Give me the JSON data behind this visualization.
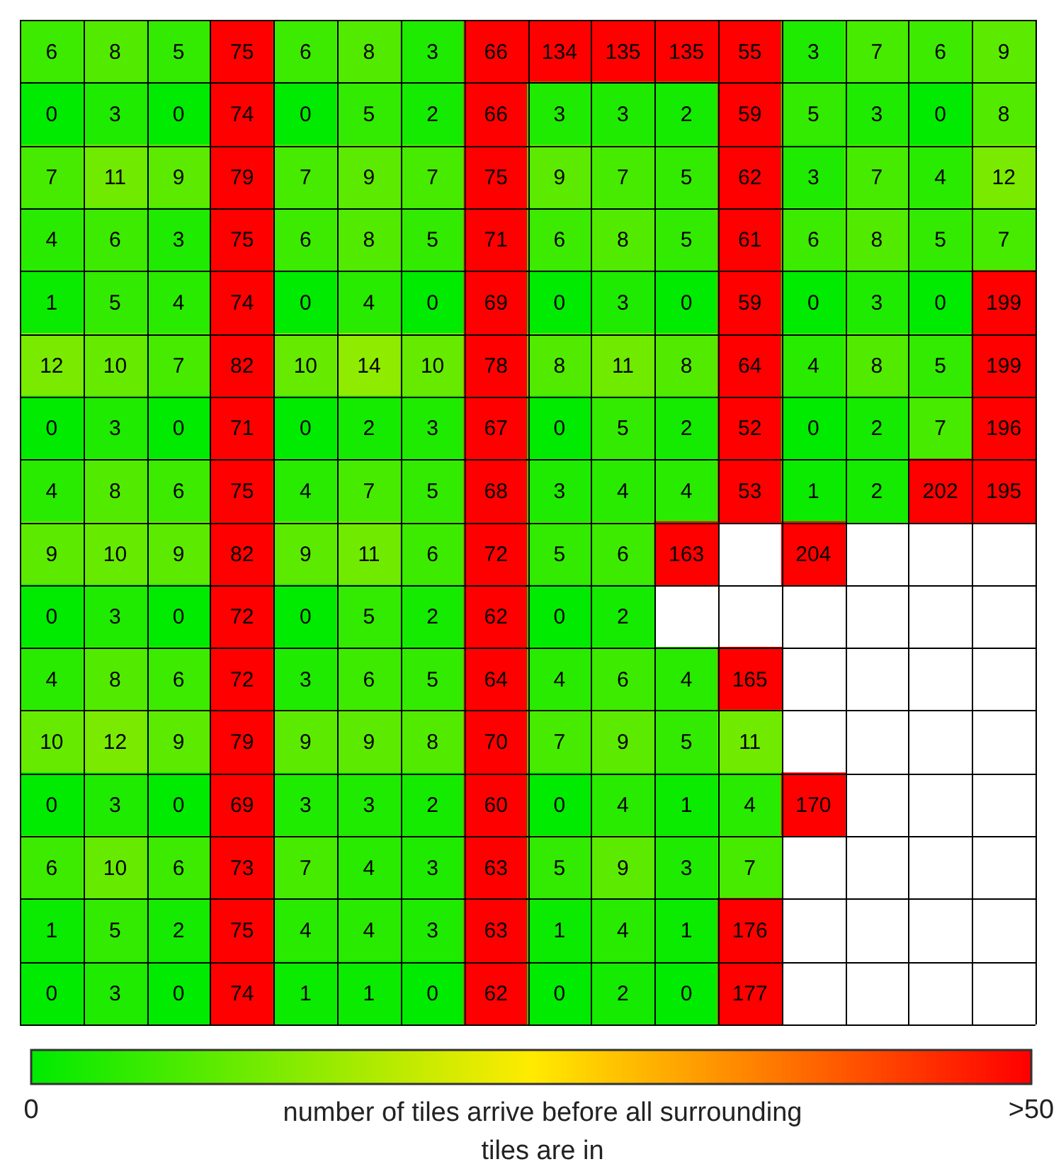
{
  "chart_data": {
    "type": "heatmap",
    "clabel": "number of tiles arrive before all surrounding tiles are in",
    "grid": true,
    "data_labels": true,
    "categories": [
      null,
      null,
      null,
      null,
      null,
      null,
      null,
      null,
      null,
      null,
      null,
      null,
      null,
      null,
      null,
      null
    ],
    "y_categories": [
      null,
      null,
      null,
      null,
      null,
      null,
      null,
      null,
      null,
      null,
      null,
      null,
      null,
      null,
      null,
      null
    ],
    "clim": [
      0,
      50
    ],
    "cticks": [
      0,
      {
        "value": 50,
        "label": ">50"
      }
    ],
    "cells": [
      [
        6,
        8,
        5,
        75,
        6,
        8,
        3,
        66,
        134,
        135,
        135,
        55,
        3,
        7,
        6,
        9
      ],
      [
        0,
        3,
        0,
        74,
        0,
        5,
        2,
        66,
        3,
        3,
        2,
        59,
        5,
        3,
        0,
        8
      ],
      [
        7,
        11,
        9,
        79,
        7,
        9,
        7,
        75,
        9,
        7,
        5,
        62,
        3,
        7,
        4,
        12
      ],
      [
        4,
        6,
        3,
        75,
        6,
        8,
        5,
        71,
        6,
        8,
        5,
        61,
        6,
        8,
        5,
        7
      ],
      [
        1,
        5,
        4,
        74,
        0,
        4,
        0,
        69,
        0,
        3,
        0,
        59,
        0,
        3,
        0,
        199
      ],
      [
        12,
        10,
        7,
        82,
        10,
        14,
        10,
        78,
        8,
        11,
        8,
        64,
        4,
        8,
        5,
        199
      ],
      [
        0,
        3,
        0,
        71,
        0,
        2,
        3,
        67,
        0,
        5,
        2,
        52,
        0,
        2,
        7,
        196
      ],
      [
        4,
        8,
        6,
        75,
        4,
        7,
        5,
        68,
        3,
        4,
        4,
        53,
        1,
        2,
        202,
        195
      ],
      [
        9,
        10,
        9,
        82,
        9,
        11,
        6,
        72,
        5,
        6,
        163,
        null,
        204,
        null,
        null,
        null
      ],
      [
        0,
        3,
        0,
        72,
        0,
        5,
        2,
        62,
        0,
        2,
        null,
        null,
        null,
        null,
        null,
        null
      ],
      [
        4,
        8,
        6,
        72,
        3,
        6,
        5,
        64,
        4,
        6,
        4,
        165,
        null,
        null,
        null,
        null
      ],
      [
        10,
        12,
        9,
        79,
        9,
        9,
        8,
        70,
        7,
        9,
        5,
        11,
        null,
        null,
        null,
        null
      ],
      [
        0,
        3,
        0,
        69,
        3,
        3,
        2,
        60,
        0,
        4,
        1,
        4,
        170,
        null,
        null,
        null
      ],
      [
        6,
        10,
        6,
        73,
        7,
        4,
        3,
        63,
        5,
        9,
        3,
        7,
        null,
        null,
        null,
        null
      ],
      [
        1,
        5,
        2,
        75,
        4,
        4,
        3,
        63,
        1,
        4,
        1,
        176,
        null,
        null,
        null,
        null
      ],
      [
        0,
        3,
        0,
        74,
        1,
        1,
        0,
        62,
        0,
        2,
        0,
        177,
        null,
        null,
        null,
        null
      ]
    ]
  }
}
